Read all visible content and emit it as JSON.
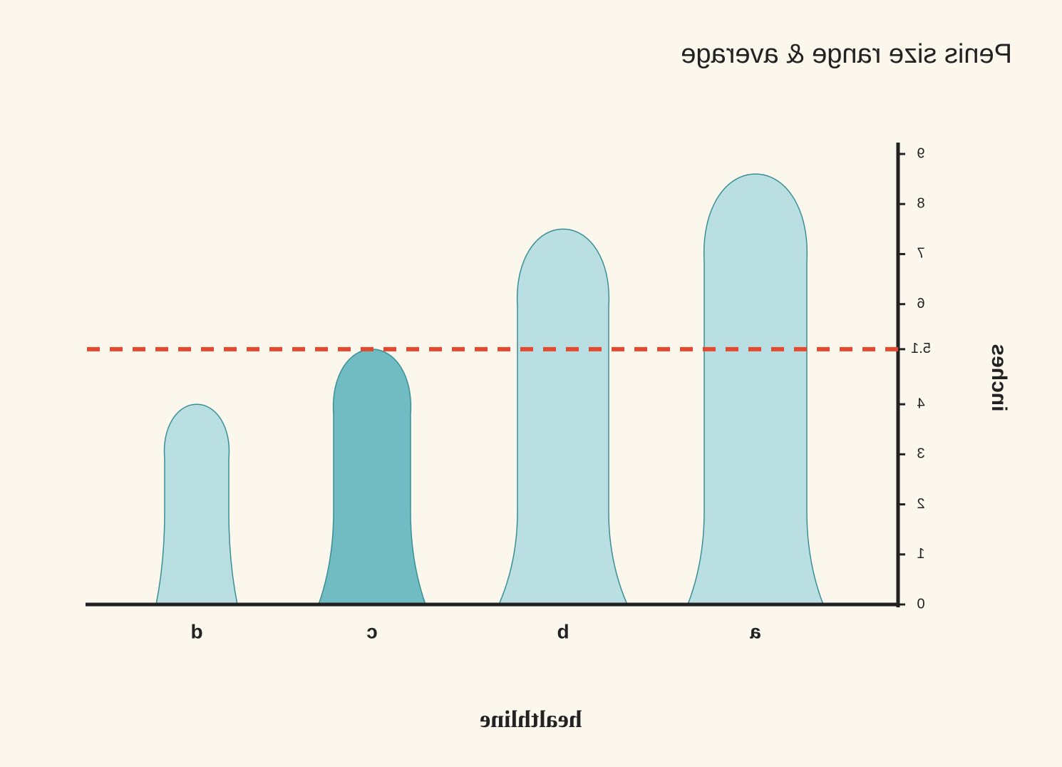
{
  "chart_data": {
    "type": "bar",
    "title": "Penis size range & average",
    "y_label": "inches",
    "categories": [
      "a",
      "b",
      "c",
      "d"
    ],
    "values": [
      8.6,
      7.5,
      5.1,
      4.0
    ],
    "colors": [
      "#b9dfe2",
      "#b9dfe2",
      "#70bcc2",
      "#b9dfe2"
    ],
    "ylim": [
      0,
      9
    ],
    "yticks": [
      0,
      1,
      2,
      3,
      4,
      5.1,
      6,
      7,
      8,
      9
    ],
    "average_line": 5.1,
    "average_color": "#e4492f",
    "mirrored": true,
    "brand": "healthline"
  }
}
